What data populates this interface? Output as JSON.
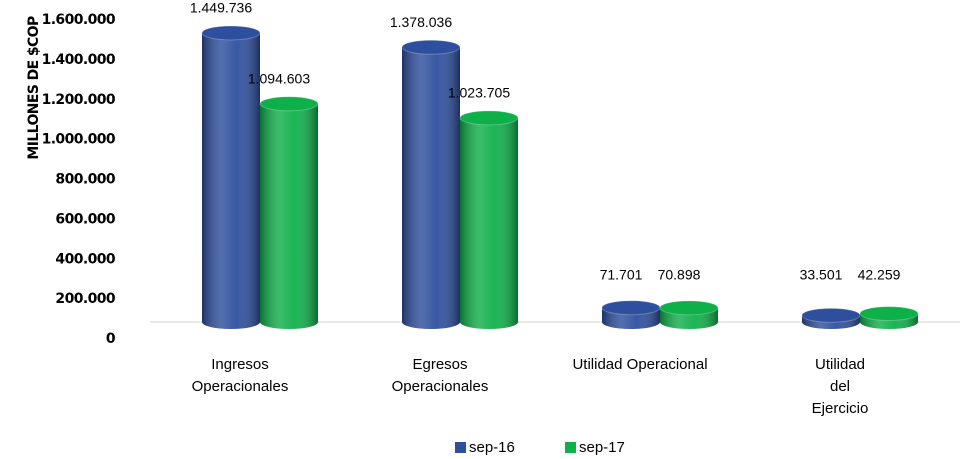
{
  "chart_data": {
    "type": "bar",
    "y_axis_label": "MILLONES DE $COP",
    "categories": [
      "Ingresos Operacionales",
      "Egresos Operacionales",
      "Utilidad Operacional",
      "Utilidad del Ejercicio"
    ],
    "series": [
      {
        "name": "sep-16",
        "color": "#2e4f9e",
        "values": [
          1449736,
          1378036,
          71701,
          33501
        ],
        "value_labels": [
          "1.449.736",
          "1.378.036",
          "71.701",
          "33.501"
        ]
      },
      {
        "name": "sep-17",
        "color": "#0fb04a",
        "values": [
          1094603,
          1023705,
          70898,
          42259
        ],
        "value_labels": [
          "1.094.603",
          "1.023.705",
          "70.898",
          "42.259"
        ]
      }
    ],
    "ylim": [
      0,
      1600000
    ],
    "yticks": [
      0,
      {
        "value": 200000,
        "label": "200.000"
      },
      {
        "value": 400000,
        "label": "400.000"
      },
      {
        "value": 600000,
        "label": "600.000"
      },
      {
        "value": 800000,
        "label": "800.000"
      },
      {
        "value": 1000000,
        "label": "1.000.000"
      },
      {
        "value": 1200000,
        "label": "1.200.000"
      },
      {
        "value": 1400000,
        "label": "1.400.000"
      },
      {
        "value": 1600000,
        "label": "1.600.000"
      }
    ],
    "legend": "bottom"
  }
}
